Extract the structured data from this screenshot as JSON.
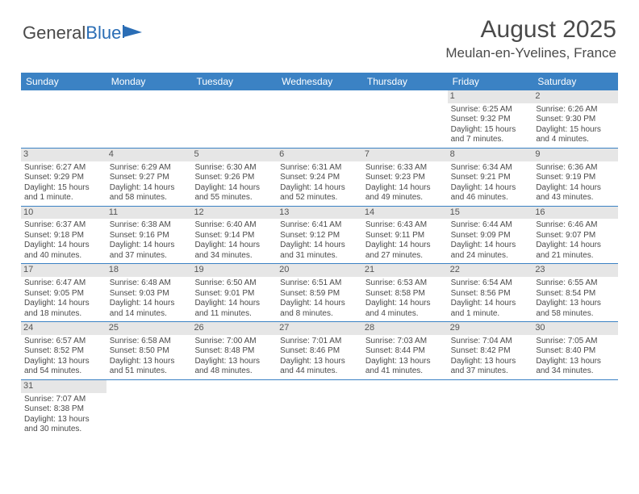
{
  "logo": {
    "text1": "General",
    "text2": "Blue"
  },
  "title": "August 2025",
  "location": "Meulan-en-Yvelines, France",
  "colors": {
    "header_bg": "#3b82c4",
    "header_text": "#ffffff",
    "daynum_bg": "#e6e6e6",
    "border": "#3b82c4",
    "text": "#4a4a4a",
    "logo_blue": "#2a6db5"
  },
  "weekdays": [
    "Sunday",
    "Monday",
    "Tuesday",
    "Wednesday",
    "Thursday",
    "Friday",
    "Saturday"
  ],
  "weeks": [
    [
      null,
      null,
      null,
      null,
      null,
      {
        "d": "1",
        "sr": "6:25 AM",
        "ss": "9:32 PM",
        "dl": "15 hours and 7 minutes."
      },
      {
        "d": "2",
        "sr": "6:26 AM",
        "ss": "9:30 PM",
        "dl": "15 hours and 4 minutes."
      }
    ],
    [
      {
        "d": "3",
        "sr": "6:27 AM",
        "ss": "9:29 PM",
        "dl": "15 hours and 1 minute."
      },
      {
        "d": "4",
        "sr": "6:29 AM",
        "ss": "9:27 PM",
        "dl": "14 hours and 58 minutes."
      },
      {
        "d": "5",
        "sr": "6:30 AM",
        "ss": "9:26 PM",
        "dl": "14 hours and 55 minutes."
      },
      {
        "d": "6",
        "sr": "6:31 AM",
        "ss": "9:24 PM",
        "dl": "14 hours and 52 minutes."
      },
      {
        "d": "7",
        "sr": "6:33 AM",
        "ss": "9:23 PM",
        "dl": "14 hours and 49 minutes."
      },
      {
        "d": "8",
        "sr": "6:34 AM",
        "ss": "9:21 PM",
        "dl": "14 hours and 46 minutes."
      },
      {
        "d": "9",
        "sr": "6:36 AM",
        "ss": "9:19 PM",
        "dl": "14 hours and 43 minutes."
      }
    ],
    [
      {
        "d": "10",
        "sr": "6:37 AM",
        "ss": "9:18 PM",
        "dl": "14 hours and 40 minutes."
      },
      {
        "d": "11",
        "sr": "6:38 AM",
        "ss": "9:16 PM",
        "dl": "14 hours and 37 minutes."
      },
      {
        "d": "12",
        "sr": "6:40 AM",
        "ss": "9:14 PM",
        "dl": "14 hours and 34 minutes."
      },
      {
        "d": "13",
        "sr": "6:41 AM",
        "ss": "9:12 PM",
        "dl": "14 hours and 31 minutes."
      },
      {
        "d": "14",
        "sr": "6:43 AM",
        "ss": "9:11 PM",
        "dl": "14 hours and 27 minutes."
      },
      {
        "d": "15",
        "sr": "6:44 AM",
        "ss": "9:09 PM",
        "dl": "14 hours and 24 minutes."
      },
      {
        "d": "16",
        "sr": "6:46 AM",
        "ss": "9:07 PM",
        "dl": "14 hours and 21 minutes."
      }
    ],
    [
      {
        "d": "17",
        "sr": "6:47 AM",
        "ss": "9:05 PM",
        "dl": "14 hours and 18 minutes."
      },
      {
        "d": "18",
        "sr": "6:48 AM",
        "ss": "9:03 PM",
        "dl": "14 hours and 14 minutes."
      },
      {
        "d": "19",
        "sr": "6:50 AM",
        "ss": "9:01 PM",
        "dl": "14 hours and 11 minutes."
      },
      {
        "d": "20",
        "sr": "6:51 AM",
        "ss": "8:59 PM",
        "dl": "14 hours and 8 minutes."
      },
      {
        "d": "21",
        "sr": "6:53 AM",
        "ss": "8:58 PM",
        "dl": "14 hours and 4 minutes."
      },
      {
        "d": "22",
        "sr": "6:54 AM",
        "ss": "8:56 PM",
        "dl": "14 hours and 1 minute."
      },
      {
        "d": "23",
        "sr": "6:55 AM",
        "ss": "8:54 PM",
        "dl": "13 hours and 58 minutes."
      }
    ],
    [
      {
        "d": "24",
        "sr": "6:57 AM",
        "ss": "8:52 PM",
        "dl": "13 hours and 54 minutes."
      },
      {
        "d": "25",
        "sr": "6:58 AM",
        "ss": "8:50 PM",
        "dl": "13 hours and 51 minutes."
      },
      {
        "d": "26",
        "sr": "7:00 AM",
        "ss": "8:48 PM",
        "dl": "13 hours and 48 minutes."
      },
      {
        "d": "27",
        "sr": "7:01 AM",
        "ss": "8:46 PM",
        "dl": "13 hours and 44 minutes."
      },
      {
        "d": "28",
        "sr": "7:03 AM",
        "ss": "8:44 PM",
        "dl": "13 hours and 41 minutes."
      },
      {
        "d": "29",
        "sr": "7:04 AM",
        "ss": "8:42 PM",
        "dl": "13 hours and 37 minutes."
      },
      {
        "d": "30",
        "sr": "7:05 AM",
        "ss": "8:40 PM",
        "dl": "13 hours and 34 minutes."
      }
    ],
    [
      {
        "d": "31",
        "sr": "7:07 AM",
        "ss": "8:38 PM",
        "dl": "13 hours and 30 minutes."
      },
      null,
      null,
      null,
      null,
      null,
      null
    ]
  ],
  "labels": {
    "sunrise": "Sunrise:",
    "sunset": "Sunset:",
    "daylight": "Daylight:"
  }
}
